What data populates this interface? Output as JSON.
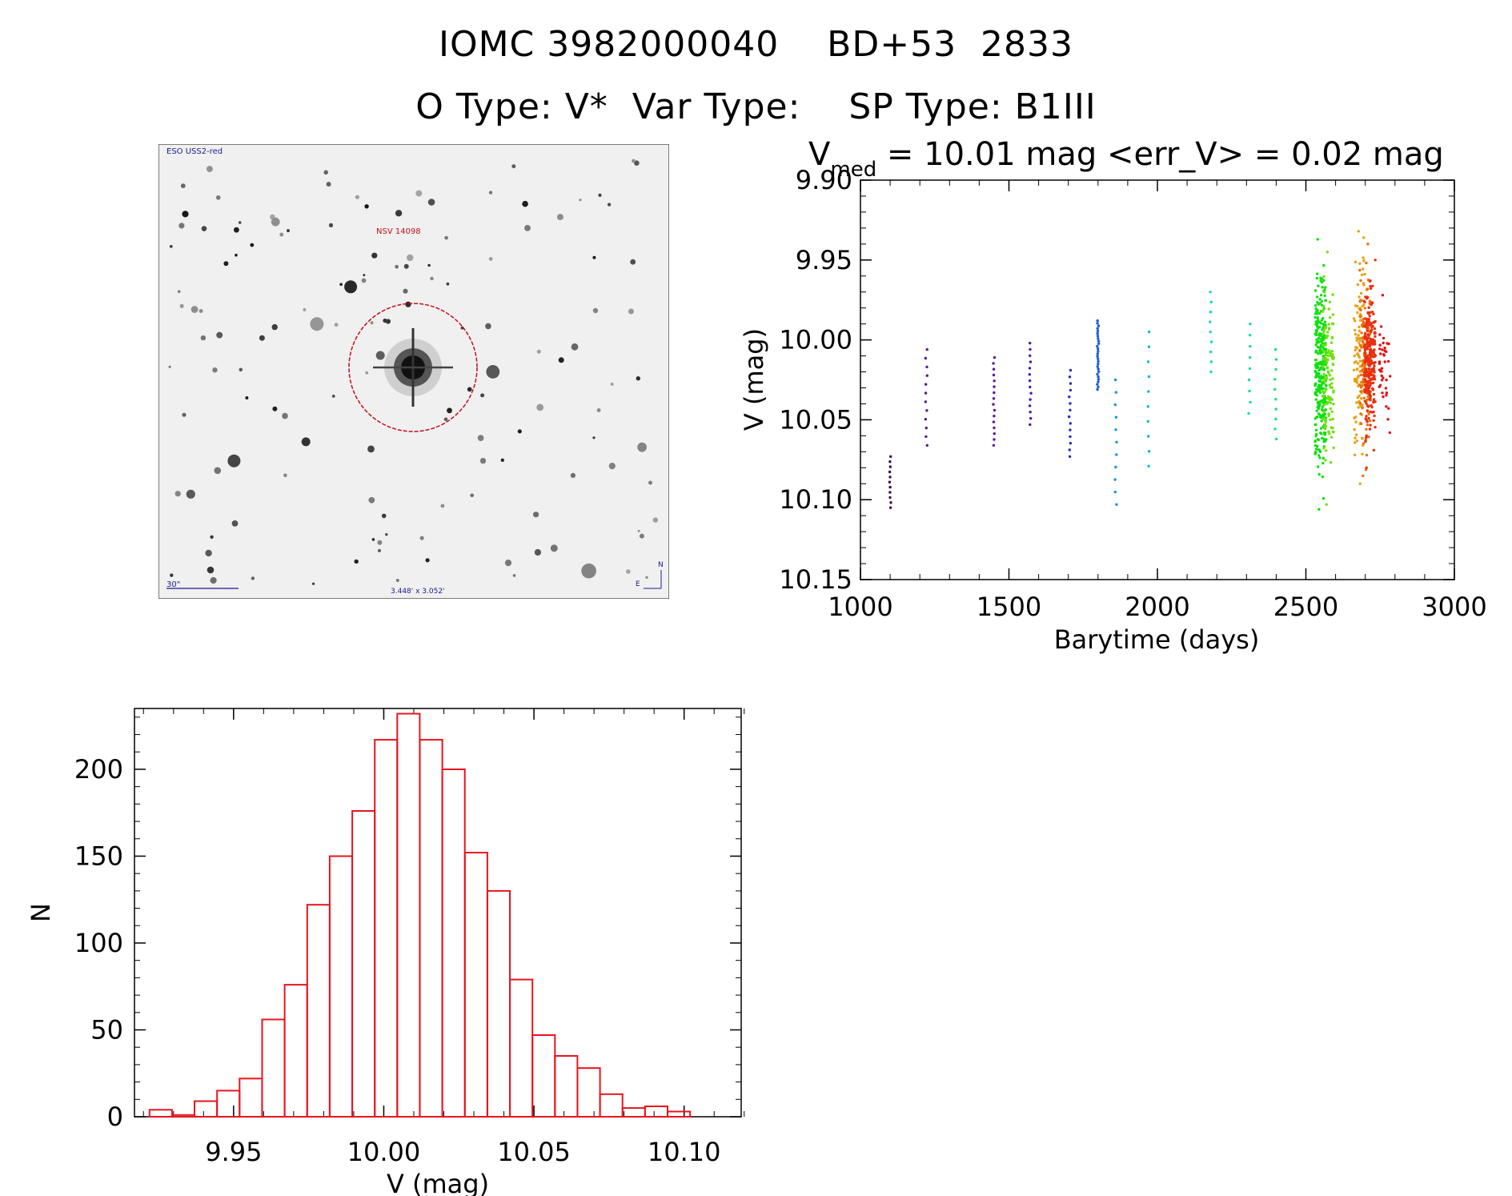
{
  "header": {
    "line1": "IOMC 3982000040    BD+53  2833",
    "line2": "O Type: V*  Var Type:    SP Type: B1III"
  },
  "finder": {
    "survey_label": "ESO USS2-red",
    "target_label": "NSV 14098",
    "scale_label": "30\"",
    "field_label": "3.448' x 3.052'",
    "compass_n": "N",
    "compass_e": "E"
  },
  "colors": {
    "histogram": "#e8141e",
    "circle": "#c0101a",
    "finder_text": "#1a1a90"
  },
  "chart_data": [
    {
      "type": "scatter",
      "title_v": "V",
      "title_sub": "med",
      "title_rest": " = 10.01 mag <err_V> = 0.02 mag",
      "xlabel": "Barytime (days)",
      "ylabel": "V (mag)",
      "xlim": [
        1000,
        3000
      ],
      "ylim": [
        10.15,
        9.9
      ],
      "xticks": [
        "1000",
        "1500",
        "2000",
        "2500",
        "3000"
      ],
      "yticks": [
        "9.90",
        "9.95",
        "10.00",
        "10.05",
        "10.10",
        "10.15"
      ],
      "groups": [
        {
          "x": 1100,
          "ymin": 10.073,
          "ymax": 10.105,
          "n": 11,
          "color": "#3a0a4a"
        },
        {
          "x": 1222,
          "ymin": 10.006,
          "ymax": 10.066,
          "n": 12,
          "color": "#5a1a8a"
        },
        {
          "x": 1450,
          "ymin": 10.011,
          "ymax": 10.066,
          "n": 16,
          "color": "#5a1aa0"
        },
        {
          "x": 1572,
          "ymin": 10.002,
          "ymax": 10.053,
          "n": 14,
          "color": "#4a1ab4"
        },
        {
          "x": 1705,
          "ymin": 10.019,
          "ymax": 10.073,
          "n": 14,
          "color": "#2a2ac0"
        },
        {
          "x": 1800,
          "ymin": 9.988,
          "ymax": 10.031,
          "n": 28,
          "color": "#1a5ae0"
        },
        {
          "x": 1860,
          "ymin": 10.025,
          "ymax": 10.103,
          "n": 11,
          "color": "#1a90e8"
        },
        {
          "x": 1970,
          "ymin": 9.995,
          "ymax": 10.079,
          "n": 10,
          "color": "#10b4e8"
        },
        {
          "x": 2180,
          "ymin": 9.97,
          "ymax": 10.02,
          "n": 9,
          "color": "#10d8c0"
        },
        {
          "x": 2310,
          "ymin": 9.99,
          "ymax": 10.046,
          "n": 9,
          "color": "#10e0a0"
        },
        {
          "x": 2398,
          "ymin": 10.006,
          "ymax": 10.062,
          "n": 10,
          "color": "#20e070"
        },
        {
          "x": 2550,
          "ymin": 9.937,
          "ymax": 10.106,
          "n": 300,
          "color": "#10e010"
        },
        {
          "x": 2575,
          "ymin": 9.945,
          "ymax": 10.103,
          "n": 120,
          "color": "#70e010"
        },
        {
          "x": 2680,
          "ymin": 9.932,
          "ymax": 10.09,
          "n": 120,
          "color": "#e8a010"
        },
        {
          "x": 2700,
          "ymin": 9.94,
          "ymax": 10.085,
          "n": 120,
          "color": "#e87010"
        },
        {
          "x": 2715,
          "ymin": 9.95,
          "ymax": 10.08,
          "n": 250,
          "color": "#e83010"
        },
        {
          "x": 2765,
          "ymin": 9.972,
          "ymax": 10.058,
          "n": 40,
          "color": "#e01010"
        }
      ]
    },
    {
      "type": "bar",
      "xlabel": "V (mag)",
      "ylabel": "N",
      "xlim": [
        9.917,
        10.119
      ],
      "ylim": [
        0,
        235
      ],
      "xticks": [
        "9.95",
        "10.00",
        "10.05",
        "10.10"
      ],
      "yticks": [
        "0",
        "50",
        "100",
        "150",
        "200"
      ],
      "bin_start": 9.922,
      "bin_width": 0.0075,
      "values": [
        4,
        1,
        9,
        15,
        22,
        56,
        76,
        122,
        150,
        176,
        217,
        232,
        217,
        200,
        152,
        130,
        79,
        47,
        35,
        28,
        13,
        5,
        6,
        3
      ]
    }
  ]
}
